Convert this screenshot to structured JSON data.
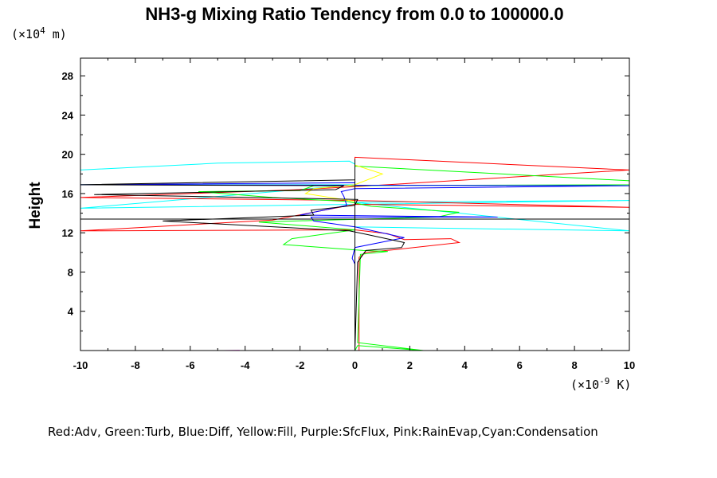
{
  "chart_data": {
    "type": "line",
    "title": "NH3-g Mixing Ratio Tendency from 0.0 to 100000.0",
    "ylabel": "Height",
    "y_unit": {
      "base": "(×10",
      "exp": "4",
      "rest": " m)"
    },
    "x_unit": {
      "base": "(×10",
      "exp": "-9",
      "rest": " K)"
    },
    "xlim": [
      -10,
      10
    ],
    "ylim": [
      0,
      29.8
    ],
    "xticks": [
      -10,
      -8,
      -6,
      -4,
      -2,
      0,
      2,
      4,
      6,
      8,
      10
    ],
    "yticks": [
      4,
      8,
      12,
      16,
      20,
      24,
      28
    ],
    "legend_text": "Red:Adv, Green:Turb, Blue:Diff, Yellow:Fill, Purple:SfcFlux, Pink:RainEvap,Cyan:Condensation",
    "series": [
      {
        "color": "#00ffff",
        "points": [
          [
            0,
            0
          ],
          [
            0,
            19
          ],
          [
            -0.2,
            19.3
          ],
          [
            -5,
            19.1
          ],
          [
            -10,
            18.4
          ],
          [
            -10,
            17.5
          ],
          [
            -10,
            16.9
          ],
          [
            0,
            16.9
          ],
          [
            -10,
            14.5
          ],
          [
            0,
            14.9
          ],
          [
            10,
            15.3
          ],
          [
            0,
            15.1
          ],
          [
            10,
            12.2
          ],
          [
            0,
            12.6
          ],
          [
            0,
            0.6
          ],
          [
            0,
            0
          ]
        ]
      },
      {
        "color": "#ff0000",
        "points": [
          [
            0.15,
            0
          ],
          [
            0.15,
            9.5
          ],
          [
            0.4,
            10
          ],
          [
            1.5,
            10.3
          ],
          [
            3.8,
            11
          ],
          [
            3.5,
            11.4
          ],
          [
            1.8,
            11.3
          ],
          [
            1.2,
            11.9
          ],
          [
            0,
            12.3
          ],
          [
            -10,
            12.2
          ],
          [
            -3,
            13.3
          ],
          [
            0,
            14.9
          ],
          [
            10,
            14.6
          ],
          [
            0,
            15.3
          ],
          [
            -10,
            15.6
          ],
          [
            -2,
            16.4
          ],
          [
            0,
            16.7
          ],
          [
            10,
            18.4
          ],
          [
            0,
            19.7
          ],
          [
            0,
            0
          ]
        ]
      },
      {
        "color": "#00ff00",
        "points": [
          [
            0,
            0
          ],
          [
            0.1,
            0.5
          ],
          [
            2.5,
            0
          ],
          [
            0.1,
            0.8
          ],
          [
            0.2,
            9.8
          ],
          [
            1.2,
            10.1
          ],
          [
            0.3,
            10.2
          ],
          [
            -2.6,
            10.8
          ],
          [
            -2.3,
            11.4
          ],
          [
            0,
            12.3
          ],
          [
            -3.5,
            13.1
          ],
          [
            -1,
            13.3
          ],
          [
            3,
            13.6
          ],
          [
            3.8,
            14.1
          ],
          [
            0.6,
            14.7
          ],
          [
            -0.3,
            15.2
          ],
          [
            -3,
            15.6
          ],
          [
            -5.7,
            16.2
          ],
          [
            -2,
            16.3
          ],
          [
            -1.5,
            16.8
          ],
          [
            10,
            16.9
          ],
          [
            10,
            17.3
          ],
          [
            0,
            18.8
          ],
          [
            0,
            0
          ]
        ]
      },
      {
        "color": "#0000ff",
        "points": [
          [
            0,
            0
          ],
          [
            0,
            8.8
          ],
          [
            -0.1,
            9.4
          ],
          [
            0,
            10.5
          ],
          [
            1.8,
            11.5
          ],
          [
            0,
            12.6
          ],
          [
            -1.5,
            13.2
          ],
          [
            -1.6,
            13.6
          ],
          [
            5.2,
            13.6
          ],
          [
            -2,
            13.8
          ],
          [
            -0.3,
            14.8
          ],
          [
            -0.4,
            15.7
          ],
          [
            -0.5,
            16.2
          ],
          [
            0,
            16.5
          ],
          [
            10,
            16.8
          ],
          [
            -10,
            16.9
          ],
          [
            0,
            17.1
          ],
          [
            0,
            0
          ]
        ]
      },
      {
        "color": "#ffff00",
        "points": [
          [
            0,
            0
          ],
          [
            0,
            15.2
          ],
          [
            -1.8,
            16
          ],
          [
            -1.5,
            16.5
          ],
          [
            0,
            16.9
          ],
          [
            1,
            18
          ],
          [
            0,
            18.9
          ],
          [
            0,
            0
          ]
        ]
      },
      {
        "color": "#000000",
        "points": [
          [
            0,
            0
          ],
          [
            0.1,
            9
          ],
          [
            0.3,
            9.8
          ],
          [
            0.4,
            10.2
          ],
          [
            1.7,
            10.5
          ],
          [
            1.8,
            11
          ],
          [
            0.5,
            11.8
          ],
          [
            -0.2,
            12.2
          ],
          [
            -7,
            13.2
          ],
          [
            -1.5,
            13.8
          ],
          [
            -1.6,
            14.3
          ],
          [
            0,
            14.8
          ],
          [
            0.1,
            15.4
          ],
          [
            -9.5,
            15.9
          ],
          [
            -0.7,
            16.4
          ],
          [
            -0.4,
            16.8
          ],
          [
            -10,
            16.9
          ],
          [
            0,
            17.4
          ],
          [
            0,
            19.5
          ],
          [
            0,
            0
          ]
        ]
      },
      {
        "color": "#ff00ff",
        "points": [
          [
            -4.8,
            0
          ],
          [
            -4.2,
            0.02
          ],
          [
            -4.8,
            0
          ]
        ]
      },
      {
        "color": "#000000",
        "points": [
          [
            -10,
            13.4
          ],
          [
            10,
            13.4
          ]
        ]
      }
    ]
  }
}
